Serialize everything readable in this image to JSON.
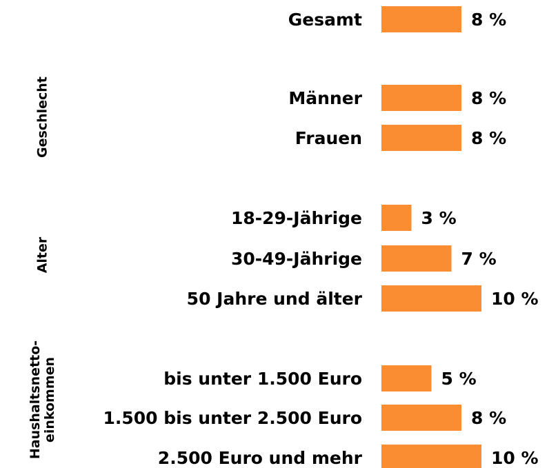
{
  "chart_data": {
    "type": "bar",
    "orientation": "horizontal",
    "color": "#fa8c32",
    "categories": [
      "Gesamt",
      "Männer",
      "Frauen",
      "18-29-Jährige",
      "30-49-Jährige",
      "50 Jahre und älter",
      "bis unter 1.500 Euro",
      "1.500 bis unter 2.500 Euro",
      "2.500 Euro und mehr"
    ],
    "values": [
      8,
      8,
      8,
      3,
      7,
      10,
      5,
      8,
      10
    ],
    "value_labels": [
      "8 %",
      "8 %",
      "8 %",
      "3 %",
      "7 %",
      "10 %",
      "5 %",
      "8 %",
      "10 %"
    ],
    "groups": [
      [
        "Geschlecht"
      ],
      [
        "Alter"
      ],
      [
        "Haushaltsnetto-",
        "einkommen"
      ]
    ]
  }
}
